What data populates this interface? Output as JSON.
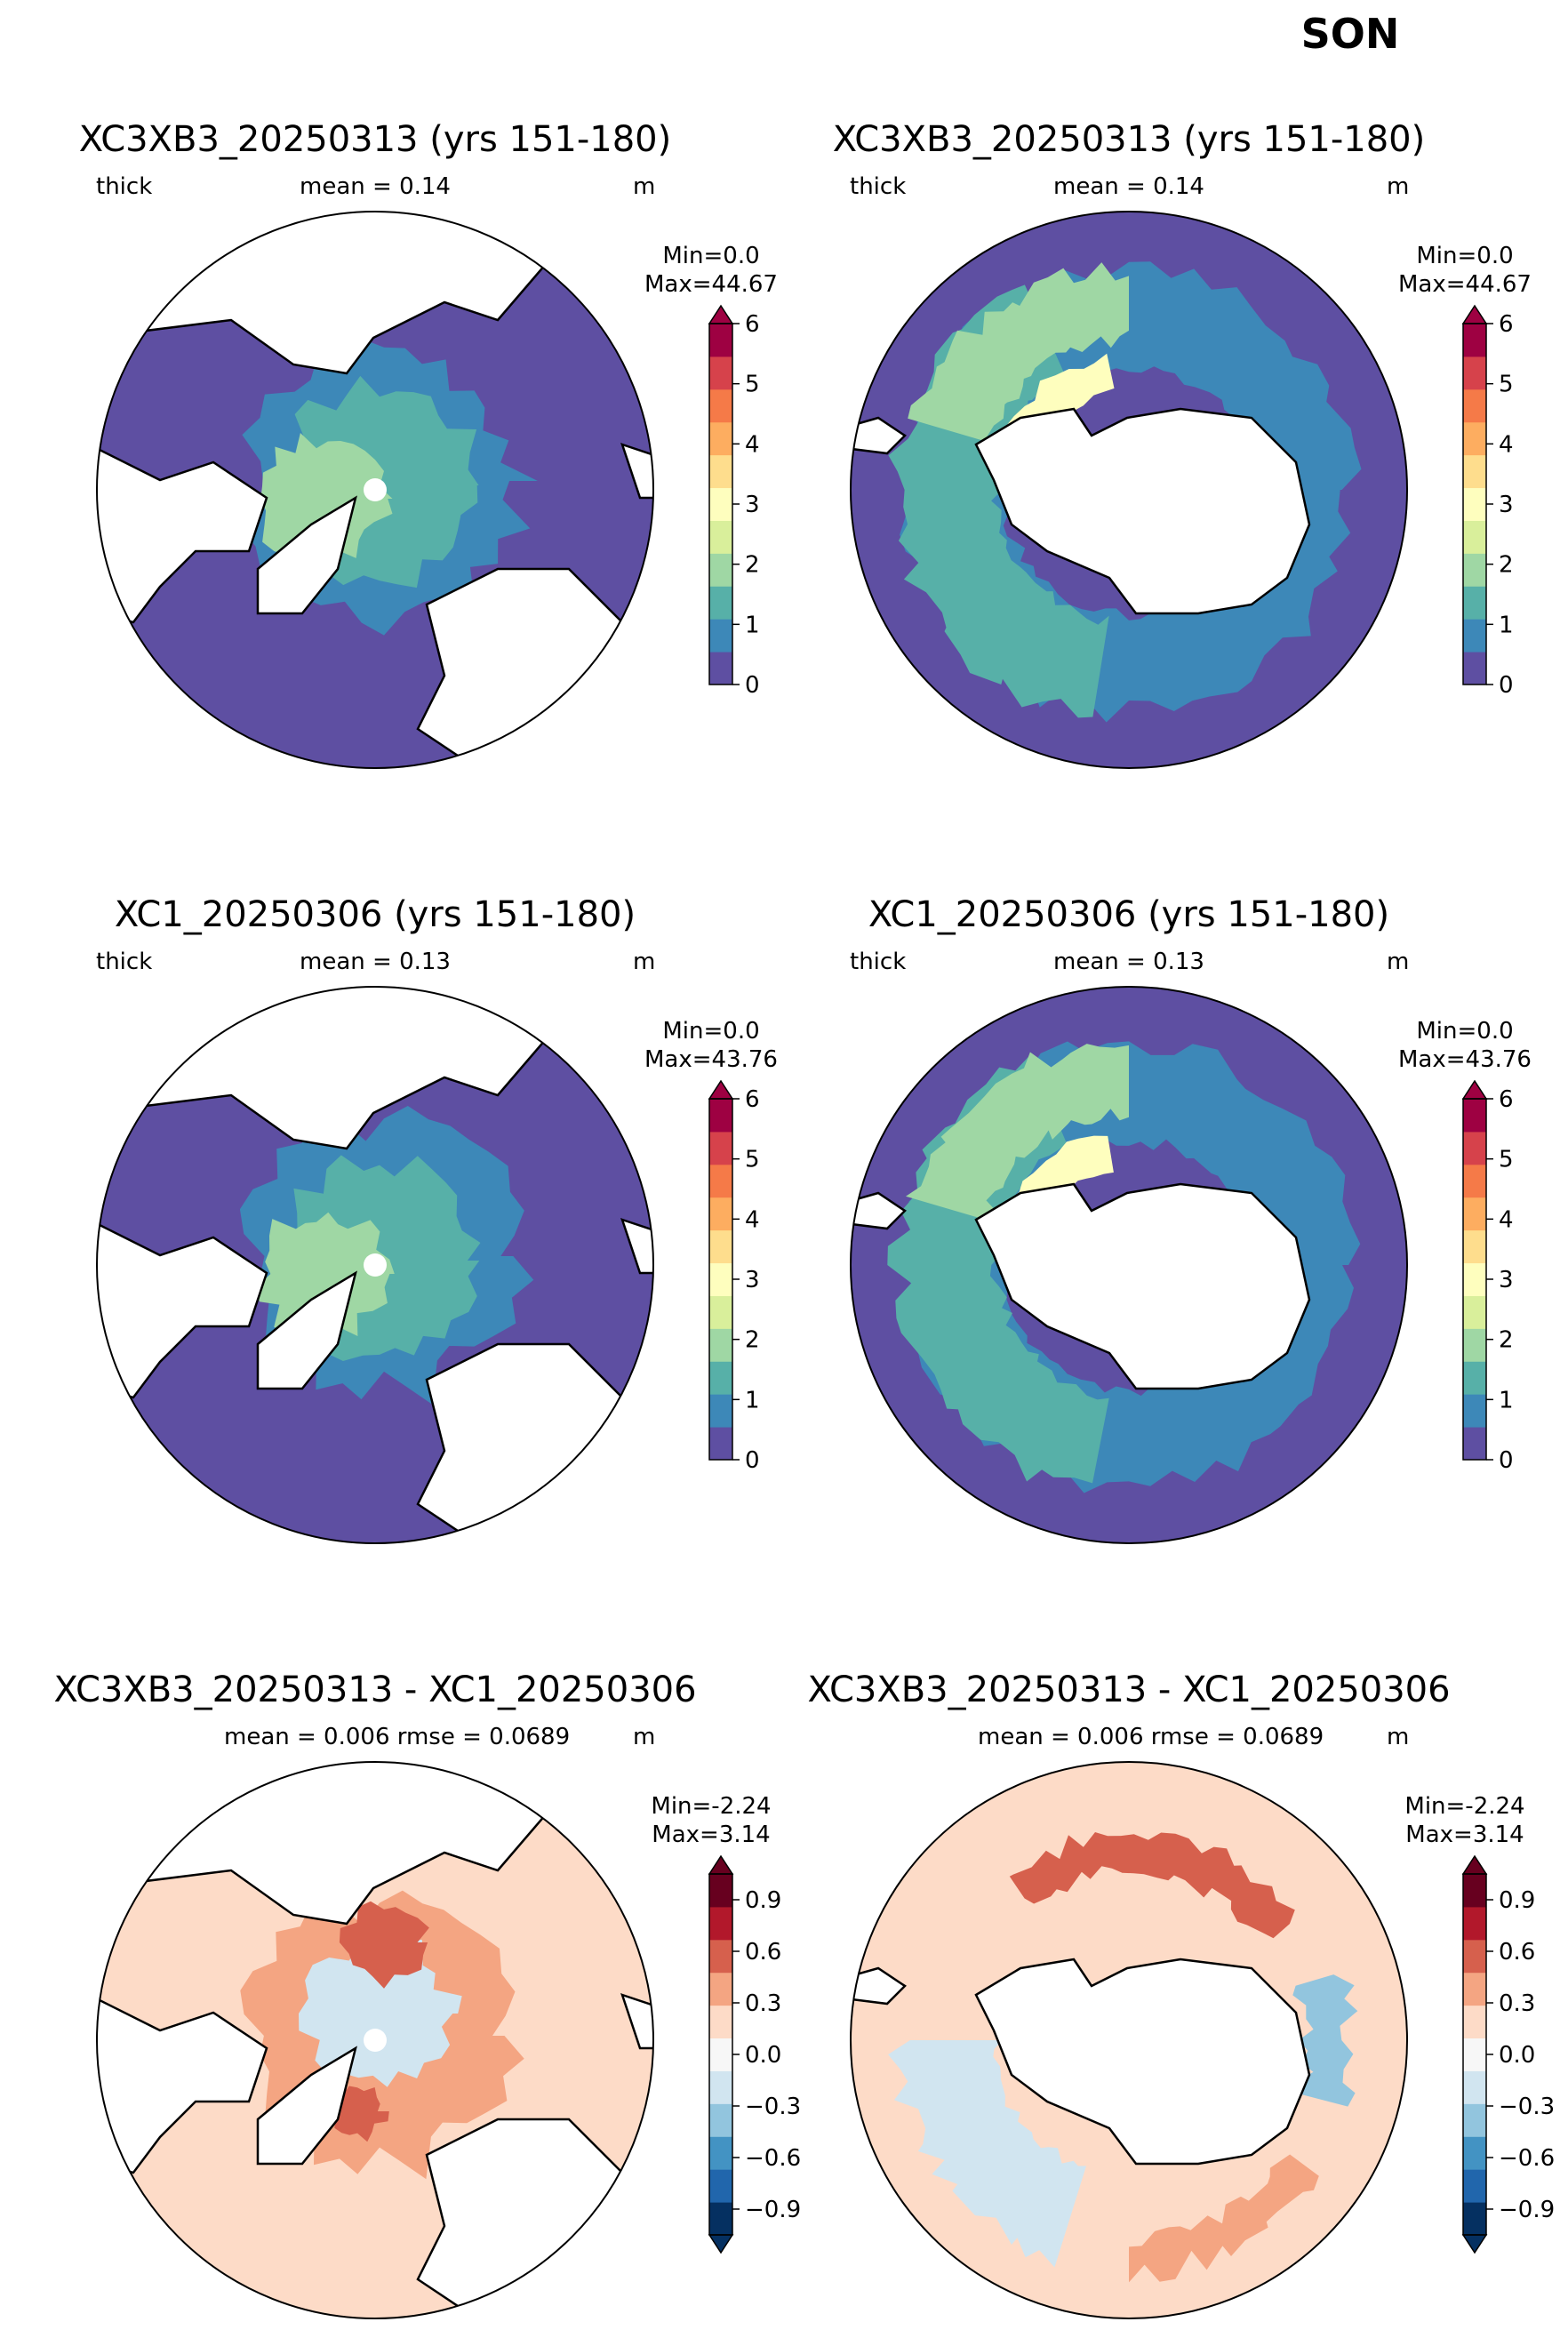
{
  "suptitle": "SON",
  "colors": {
    "land": "#ffffff",
    "coast": "#000000",
    "thickness_scale": [
      "#5e4fa2",
      "#3d88b8",
      "#57b0a8",
      "#9fd7a4",
      "#d9ef9b",
      "#fefebe",
      "#fedd8d",
      "#fdad60",
      "#f57a48",
      "#d6424b",
      "#9e0142"
    ],
    "diff_scale": [
      "#053061",
      "#2166ac",
      "#4393c3",
      "#92c5de",
      "#d1e5f0",
      "#f7f7f7",
      "#fddbc7",
      "#f4a582",
      "#d6604d",
      "#b2182b",
      "#67001f"
    ]
  },
  "chart_data": [
    {
      "type": "heatmap",
      "projection": "north-polar-stereographic",
      "title": "XC3XB3_20250313 (yrs 151-180)",
      "variable": "thick",
      "mean_text": "mean = 0.14",
      "units": "m",
      "min_text": "Min=0.0",
      "max_text": "Max=44.67",
      "colorbar": {
        "ticks": [
          "0",
          "1",
          "2",
          "3",
          "4",
          "5",
          "6"
        ],
        "vmin": 0,
        "vmax": 6,
        "extend": "max"
      }
    },
    {
      "type": "heatmap",
      "projection": "south-polar-stereographic",
      "title": "XC3XB3_20250313 (yrs 151-180)",
      "variable": "thick",
      "mean_text": "mean = 0.14",
      "units": "m",
      "min_text": "Min=0.0",
      "max_text": "Max=44.67",
      "colorbar": {
        "ticks": [
          "0",
          "1",
          "2",
          "3",
          "4",
          "5",
          "6"
        ],
        "vmin": 0,
        "vmax": 6,
        "extend": "max"
      }
    },
    {
      "type": "heatmap",
      "projection": "north-polar-stereographic",
      "title": "XC1_20250306 (yrs 151-180)",
      "variable": "thick",
      "mean_text": "mean = 0.13",
      "units": "m",
      "min_text": "Min=0.0",
      "max_text": "Max=43.76",
      "colorbar": {
        "ticks": [
          "0",
          "1",
          "2",
          "3",
          "4",
          "5",
          "6"
        ],
        "vmin": 0,
        "vmax": 6,
        "extend": "max"
      }
    },
    {
      "type": "heatmap",
      "projection": "south-polar-stereographic",
      "title": "XC1_20250306 (yrs 151-180)",
      "variable": "thick",
      "mean_text": "mean = 0.13",
      "units": "m",
      "min_text": "Min=0.0",
      "max_text": "Max=43.76",
      "colorbar": {
        "ticks": [
          "0",
          "1",
          "2",
          "3",
          "4",
          "5",
          "6"
        ],
        "vmin": 0,
        "vmax": 6,
        "extend": "max"
      }
    },
    {
      "type": "heatmap",
      "projection": "north-polar-stereographic",
      "title": "XC3XB3_20250313 - XC1_20250306",
      "variable": "",
      "mean_text": "mean = 0.006 rmse = 0.0689",
      "units": "m",
      "min_text": "Min=-2.24",
      "max_text": "Max=3.14",
      "colorbar": {
        "ticks": [
          "−0.9",
          "−0.6",
          "−0.3",
          "0.0",
          "0.3",
          "0.6",
          "0.9"
        ],
        "vmin": -1.05,
        "vmax": 1.05,
        "extend": "both"
      }
    },
    {
      "type": "heatmap",
      "projection": "south-polar-stereographic",
      "title": "XC3XB3_20250313 - XC1_20250306",
      "variable": "",
      "mean_text": "mean = 0.006 rmse = 0.0689",
      "units": "m",
      "min_text": "Min=-2.24",
      "max_text": "Max=3.14",
      "colorbar": {
        "ticks": [
          "−0.9",
          "−0.6",
          "−0.3",
          "0.0",
          "0.3",
          "0.6",
          "0.9"
        ],
        "vmin": -1.05,
        "vmax": 1.05,
        "extend": "both"
      }
    }
  ]
}
